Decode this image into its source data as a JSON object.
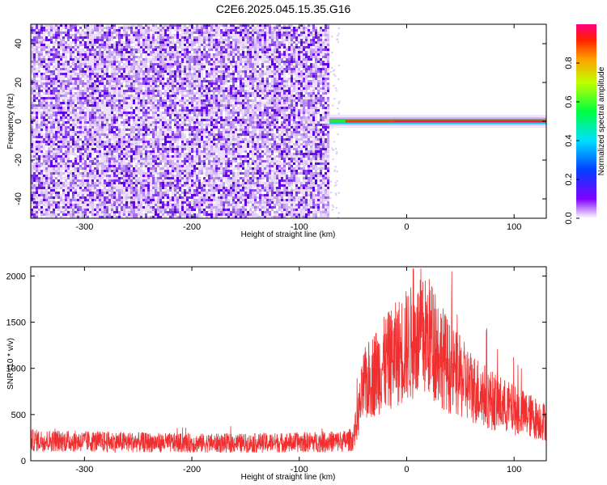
{
  "title": "C2E6.2025.045.15.35.G16",
  "chart_data": [
    {
      "type": "heatmap",
      "xlabel": "Height of straight line (km)",
      "ylabel": "Frequency (Hz)",
      "xlim": [
        -350,
        130
      ],
      "ylim": [
        -50,
        50
      ],
      "xticks": [
        -300,
        -200,
        -100,
        0,
        100
      ],
      "yticks": [
        -40,
        -20,
        0,
        20,
        40
      ],
      "grid": false,
      "noise_region_x": [
        -350,
        -72
      ],
      "signal_line": {
        "x": [
          -72,
          130
        ],
        "frequency": 0
      },
      "colorbar": {
        "label": "Normalized spectral amplitude",
        "range": [
          0,
          1
        ],
        "ticks": [
          "0.0",
          "0.2",
          "0.4",
          "0.6",
          "0.8"
        ],
        "colormap": "rainbow"
      }
    },
    {
      "type": "line",
      "xlabel": "Height of straight line (km)",
      "ylabel": "SNR (10 * v/v)",
      "xlim": [
        -350,
        130
      ],
      "ylim": [
        0,
        2100
      ],
      "xticks": [
        -300,
        -200,
        -100,
        0,
        100
      ],
      "yticks": [
        0,
        500,
        1000,
        1500,
        2000
      ],
      "grid": false,
      "color": "#f03030",
      "series": [
        {
          "x": [
            -350,
            -300,
            -250,
            -200,
            -150,
            -100,
            -60,
            -50,
            -45,
            -40,
            -30,
            -20,
            -10,
            0,
            10,
            20,
            30,
            40,
            60,
            80,
            100,
            130
          ],
          "values": [
            220,
            210,
            200,
            190,
            190,
            200,
            210,
            230,
            500,
            800,
            950,
            1050,
            1150,
            1250,
            1300,
            1350,
            1200,
            1000,
            800,
            650,
            550,
            420
          ]
        }
      ]
    }
  ]
}
